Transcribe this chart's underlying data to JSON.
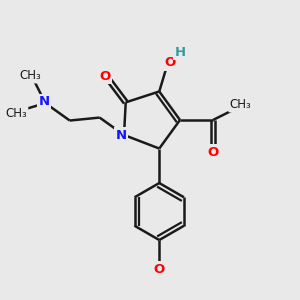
{
  "background_color": "#e9e9e9",
  "bond_color": "#1a1a1a",
  "N_color": "#1414ff",
  "O_color": "#ff0000",
  "H_color": "#3a9a9a",
  "line_width": 1.8,
  "figsize": [
    3.0,
    3.0
  ],
  "dpi": 100,
  "xlim": [
    0,
    1
  ],
  "ylim": [
    0,
    1
  ]
}
